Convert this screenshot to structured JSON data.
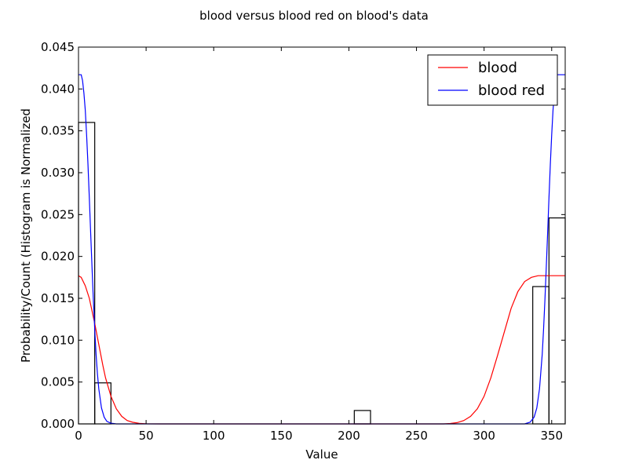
{
  "chart_data": {
    "type": "histogram-with-density-lines",
    "title": "blood versus blood red on blood's data",
    "xlabel": "Value",
    "ylabel": "Probability/Count (Histogram is Normalized",
    "xlim": [
      0,
      360
    ],
    "ylim": [
      0,
      0.045
    ],
    "x_ticks": [
      0,
      50,
      100,
      150,
      200,
      250,
      300,
      350
    ],
    "y_ticks": [
      0.0,
      0.005,
      0.01,
      0.015,
      0.02,
      0.025,
      0.03,
      0.035,
      0.04,
      0.045
    ],
    "y_tick_labels": [
      "0.000",
      "0.005",
      "0.010",
      "0.015",
      "0.020",
      "0.025",
      "0.030",
      "0.035",
      "0.040",
      "0.045"
    ],
    "legend_position": "top-right",
    "histogram": {
      "color": "#000000",
      "bins": [
        {
          "x0": 0,
          "x1": 12,
          "value": 0.036
        },
        {
          "x0": 12,
          "x1": 24,
          "value": 0.0049
        },
        {
          "x0": 204,
          "x1": 216,
          "value": 0.0016
        },
        {
          "x0": 336,
          "x1": 348,
          "value": 0.0164
        },
        {
          "x0": 348,
          "x1": 360,
          "value": 0.0246
        }
      ]
    },
    "series": [
      {
        "name": "blood",
        "color": "#ff0000",
        "points": [
          [
            0,
            0.0177
          ],
          [
            2,
            0.0175
          ],
          [
            5,
            0.0165
          ],
          [
            8,
            0.015
          ],
          [
            10,
            0.0135
          ],
          [
            12,
            0.012
          ],
          [
            15,
            0.0095
          ],
          [
            18,
            0.007
          ],
          [
            20,
            0.0055
          ],
          [
            24,
            0.0033
          ],
          [
            28,
            0.0018
          ],
          [
            32,
            0.0009
          ],
          [
            36,
            0.0004
          ],
          [
            40,
            0.0002
          ],
          [
            45,
            6e-05
          ],
          [
            50,
            1e-05
          ],
          [
            60,
            0
          ],
          [
            270,
            0
          ],
          [
            275,
            5e-05
          ],
          [
            280,
            0.00015
          ],
          [
            285,
            0.0004
          ],
          [
            290,
            0.0009
          ],
          [
            295,
            0.0018
          ],
          [
            300,
            0.0033
          ],
          [
            305,
            0.0055
          ],
          [
            310,
            0.0082
          ],
          [
            315,
            0.011
          ],
          [
            320,
            0.0138
          ],
          [
            325,
            0.0158
          ],
          [
            330,
            0.017
          ],
          [
            335,
            0.0175
          ],
          [
            340,
            0.0177
          ],
          [
            345,
            0.0177
          ],
          [
            360,
            0.0177
          ]
        ]
      },
      {
        "name": "blood red",
        "color": "#0000ff",
        "points": [
          [
            0,
            0.0417
          ],
          [
            2,
            0.0417
          ],
          [
            3,
            0.041
          ],
          [
            4,
            0.0395
          ],
          [
            5,
            0.0375
          ],
          [
            6,
            0.0345
          ],
          [
            7,
            0.031
          ],
          [
            8,
            0.027
          ],
          [
            9,
            0.0228
          ],
          [
            10,
            0.0187
          ],
          [
            11,
            0.0148
          ],
          [
            12,
            0.0113
          ],
          [
            13,
            0.0083
          ],
          [
            14,
            0.006
          ],
          [
            15,
            0.0042
          ],
          [
            17,
            0.0019
          ],
          [
            19,
            0.0008
          ],
          [
            21,
            0.0003
          ],
          [
            24,
            8e-05
          ],
          [
            28,
            0
          ],
          [
            330,
            0
          ],
          [
            334,
            0.0002
          ],
          [
            337,
            0.0008
          ],
          [
            339,
            0.0019
          ],
          [
            341,
            0.0042
          ],
          [
            343,
            0.0083
          ],
          [
            344,
            0.0113
          ],
          [
            345,
            0.0148
          ],
          [
            346,
            0.0187
          ],
          [
            347,
            0.0228
          ],
          [
            348,
            0.027
          ],
          [
            349,
            0.031
          ],
          [
            350,
            0.0345
          ],
          [
            351,
            0.0375
          ],
          [
            352,
            0.0395
          ],
          [
            353,
            0.041
          ],
          [
            354,
            0.0417
          ],
          [
            360,
            0.0417
          ]
        ]
      }
    ]
  }
}
